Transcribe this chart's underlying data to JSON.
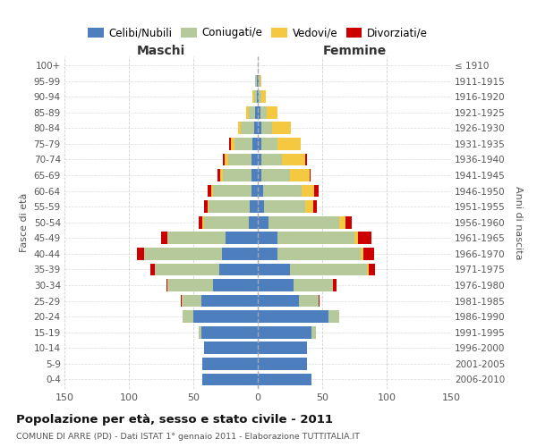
{
  "age_groups": [
    "0-4",
    "5-9",
    "10-14",
    "15-19",
    "20-24",
    "25-29",
    "30-34",
    "35-39",
    "40-44",
    "45-49",
    "50-54",
    "55-59",
    "60-64",
    "65-69",
    "70-74",
    "75-79",
    "80-84",
    "85-89",
    "90-94",
    "95-99",
    "100+"
  ],
  "birth_years": [
    "2006-2010",
    "2001-2005",
    "1996-2000",
    "1991-1995",
    "1986-1990",
    "1981-1985",
    "1976-1980",
    "1971-1975",
    "1966-1970",
    "1961-1965",
    "1956-1960",
    "1951-1955",
    "1946-1950",
    "1941-1945",
    "1936-1940",
    "1931-1935",
    "1926-1930",
    "1921-1925",
    "1916-1920",
    "1911-1915",
    "≤ 1910"
  ],
  "male": {
    "celibi": [
      43,
      43,
      42,
      44,
      50,
      44,
      35,
      30,
      28,
      25,
      7,
      6,
      5,
      5,
      5,
      4,
      3,
      2,
      1,
      1,
      0
    ],
    "coniugati": [
      0,
      0,
      0,
      2,
      8,
      15,
      35,
      50,
      60,
      45,
      35,
      32,
      30,
      22,
      18,
      14,
      10,
      5,
      2,
      1,
      0
    ],
    "vedovi": [
      0,
      0,
      0,
      0,
      0,
      0,
      0,
      0,
      0,
      0,
      1,
      1,
      1,
      2,
      3,
      3,
      2,
      2,
      1,
      0,
      0
    ],
    "divorziati": [
      0,
      0,
      0,
      0,
      0,
      1,
      1,
      3,
      6,
      5,
      3,
      3,
      3,
      2,
      1,
      1,
      0,
      0,
      0,
      0,
      0
    ]
  },
  "female": {
    "nubili": [
      42,
      38,
      38,
      42,
      55,
      32,
      28,
      25,
      15,
      15,
      8,
      5,
      4,
      3,
      3,
      3,
      3,
      2,
      1,
      1,
      0
    ],
    "coniugate": [
      0,
      0,
      0,
      3,
      8,
      15,
      30,
      60,
      65,
      60,
      55,
      32,
      30,
      22,
      16,
      12,
      8,
      5,
      2,
      1,
      0
    ],
    "vedove": [
      0,
      0,
      0,
      0,
      0,
      0,
      0,
      1,
      2,
      3,
      5,
      6,
      10,
      15,
      18,
      18,
      15,
      8,
      3,
      1,
      0
    ],
    "divorziate": [
      0,
      0,
      0,
      0,
      0,
      1,
      3,
      5,
      8,
      10,
      5,
      3,
      3,
      1,
      1,
      0,
      0,
      0,
      0,
      0,
      0
    ]
  },
  "colors": {
    "celibi_nubili": "#4d7ebe",
    "coniugati": "#b5c99a",
    "vedovi": "#f5c842",
    "divorziati": "#cc0000"
  },
  "xlim": 150,
  "title": "Popolazione per età, sesso e stato civile - 2011",
  "subtitle": "COMUNE DI ARRE (PD) - Dati ISTAT 1° gennaio 2011 - Elaborazione TUTTITALIA.IT",
  "ylabel_left": "Fasce di età",
  "ylabel_right": "Anni di nascita",
  "xlabel_left": "Maschi",
  "xlabel_right": "Femmine",
  "legend_labels": [
    "Celibi/Nubili",
    "Coniugati/e",
    "Vedovi/e",
    "Divorziati/e"
  ],
  "background_color": "#ffffff",
  "grid_color": "#cccccc"
}
